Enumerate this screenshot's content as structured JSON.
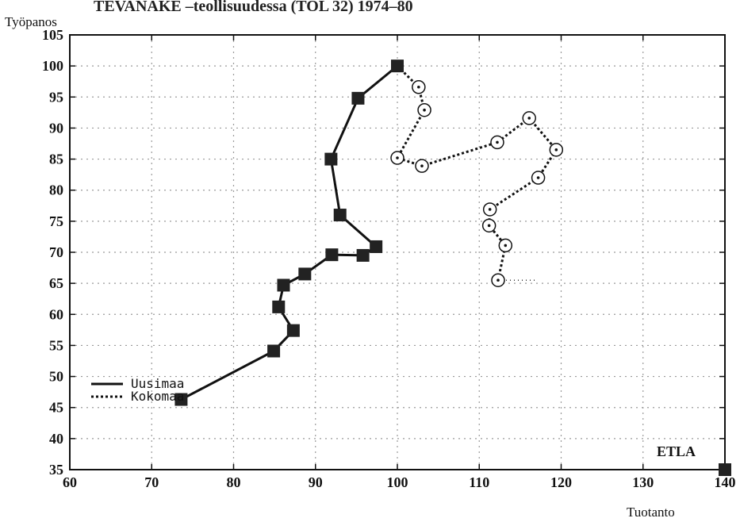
{
  "chart_data": {
    "type": "line",
    "title": "TEVANAKE –teollisuudessa (TOL 32) 1974–80",
    "xlabel": "Tuotanto",
    "ylabel": "Työpanos",
    "xlim": [
      60,
      140
    ],
    "ylim": [
      35,
      105
    ],
    "xticks": [
      60,
      70,
      80,
      90,
      100,
      110,
      120,
      130,
      140
    ],
    "yticks": [
      35,
      40,
      45,
      50,
      55,
      60,
      65,
      70,
      75,
      80,
      85,
      90,
      95,
      100,
      105
    ],
    "grid": true,
    "legend_position": "lower-left",
    "series": [
      {
        "name": "Uusimaa",
        "style": "solid",
        "marker": "square",
        "color": "#111111",
        "points": [
          [
            100,
            100
          ],
          [
            95.2,
            94.8
          ],
          [
            91.9,
            85
          ],
          [
            93,
            76
          ],
          [
            97.4,
            70.9
          ],
          [
            95.8,
            69.5
          ],
          [
            92,
            69.6
          ],
          [
            88.7,
            66.5
          ],
          [
            86.1,
            64.7
          ],
          [
            85.5,
            61.2
          ],
          [
            87.3,
            57.4
          ],
          [
            84.9,
            54.1
          ],
          [
            73.6,
            46.3
          ]
        ]
      },
      {
        "name": "Kokomaa",
        "style": "dotted",
        "marker": "circle",
        "color": "#111111",
        "points": [
          [
            100,
            100
          ],
          [
            102.6,
            96.6
          ],
          [
            103.3,
            92.9
          ],
          [
            100,
            85.2
          ],
          [
            103,
            83.9
          ],
          [
            112.2,
            87.7
          ],
          [
            116.1,
            91.6
          ],
          [
            119.4,
            86.5
          ],
          [
            117.2,
            82
          ],
          [
            111.3,
            76.9
          ],
          [
            111.2,
            74.3
          ],
          [
            113.2,
            71.1
          ],
          [
            112.3,
            65.5
          ]
        ],
        "end_marker_line_x": 117
      }
    ],
    "corner_marker": [
      140,
      35
    ],
    "brand": "ETLA"
  }
}
